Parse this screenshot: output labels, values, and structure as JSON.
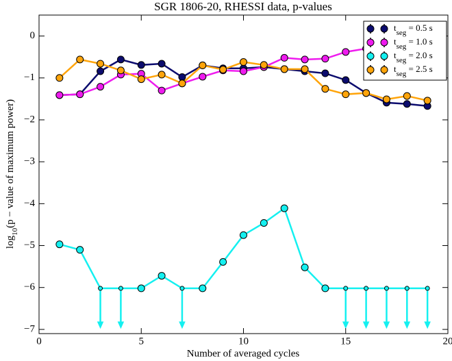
{
  "chart_data": {
    "type": "line",
    "title": "SGR 1806-20, RHESSI data, p-values",
    "x_label": "Number of averaged cycles",
    "y_label": "log10(p − value of maximum power)",
    "xlim": [
      0,
      20
    ],
    "ylim": [
      -7.1,
      0.5
    ],
    "xticks": [
      0,
      5,
      10,
      15,
      20
    ],
    "yticks": [
      0,
      {
        "value": -1,
        "label": "−1"
      },
      {
        "value": -2,
        "label": "−2"
      },
      {
        "value": -3,
        "label": "−3"
      },
      {
        "value": -4,
        "label": "−4"
      },
      {
        "value": -5,
        "label": "−5"
      },
      {
        "value": -6,
        "label": "−6"
      },
      {
        "value": -7,
        "label": "−7"
      }
    ],
    "grid": false,
    "legend": "upper right",
    "x": [
      1,
      2,
      3,
      4,
      5,
      6,
      7,
      8,
      9,
      10,
      11,
      12,
      13,
      14,
      15,
      16,
      17,
      18,
      19
    ],
    "series": [
      {
        "name": "tseg = 0.5 s",
        "color": "#0c0c6e",
        "values": [
          -1.41,
          -1.39,
          -0.84,
          -0.56,
          -0.69,
          -0.66,
          -0.98,
          -0.7,
          -0.77,
          -0.77,
          -0.74,
          -0.79,
          -0.84,
          -0.89,
          -1.05,
          -1.36,
          -1.59,
          -1.62,
          -1.67
        ]
      },
      {
        "name": "tseg = 1.0 s",
        "color": "#ee1bee",
        "values": [
          -1.41,
          -1.39,
          -1.21,
          -0.92,
          -0.9,
          -1.3,
          -1.13,
          -0.97,
          -0.82,
          -0.84,
          -0.74,
          -0.52,
          -0.56,
          -0.54,
          -0.38,
          -0.3,
          -0.22,
          -0.15,
          -0.1
        ]
      },
      {
        "name": "tseg = 2.0 s",
        "color": "#14f0f0",
        "values": [
          -4.97,
          -5.1,
          -6.02,
          -6.02,
          -6.02,
          -5.72,
          -6.02,
          -6.02,
          -5.39,
          -4.75,
          -4.46,
          -4.11,
          -5.52,
          -6.02,
          -6.02,
          -6.02,
          -6.02,
          -6.02,
          -6.02
        ],
        "upper_limit": [
          false,
          false,
          true,
          true,
          false,
          false,
          true,
          false,
          false,
          false,
          false,
          false,
          false,
          false,
          true,
          true,
          true,
          true,
          true
        ]
      },
      {
        "name": "tseg = 2.5 s",
        "color": "#ffa40a",
        "values": [
          -1.0,
          -0.56,
          -0.66,
          -0.82,
          -1.03,
          -0.92,
          -1.13,
          -0.7,
          -0.8,
          -0.62,
          -0.69,
          -0.79,
          -0.79,
          -1.26,
          -1.39,
          -1.36,
          -1.51,
          -1.43,
          -1.54
        ]
      }
    ]
  }
}
